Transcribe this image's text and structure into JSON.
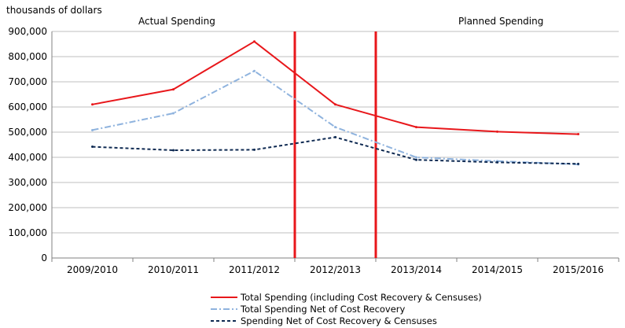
{
  "chart_data": {
    "type": "line",
    "ylabel": "thousands of dollars",
    "ylim": [
      0,
      900000
    ],
    "yticks": [
      0,
      100000,
      200000,
      300000,
      400000,
      500000,
      600000,
      700000,
      800000,
      900000
    ],
    "ytick_labels": [
      "0",
      "100,000",
      "200,000",
      "300,000",
      "400,000",
      "500,000",
      "600,000",
      "700,000",
      "800,000",
      "900,000"
    ],
    "categories": [
      "2009/2010",
      "2010/2011",
      "2011/2012",
      "2012/2013",
      "2013/2014",
      "2014/2015",
      "2015/2016"
    ],
    "grid": "horizontal",
    "legend_position": "bottom",
    "region_labels": {
      "actual": "Actual  Spending",
      "planned": "Planned Spending"
    },
    "dividers_between": [
      [
        2,
        3
      ],
      [
        3,
        4
      ]
    ],
    "series": [
      {
        "name": "Total Spending (including Cost Recovery & Censuses)",
        "values": [
          610000,
          670000,
          860000,
          610000,
          520000,
          502000,
          492000
        ],
        "color": "#e8171b",
        "style": "solid"
      },
      {
        "name": "Total Spending Net of Cost Recovery",
        "values": [
          508000,
          575000,
          743000,
          520000,
          400000,
          385000,
          372000
        ],
        "color": "#8fb3de",
        "style": "dashdot"
      },
      {
        "name": "Spending Net of Cost Recovery & Censuses",
        "values": [
          442000,
          428000,
          430000,
          480000,
          390000,
          380000,
          374000
        ],
        "color": "#0f2a52",
        "style": "dashed"
      }
    ]
  }
}
